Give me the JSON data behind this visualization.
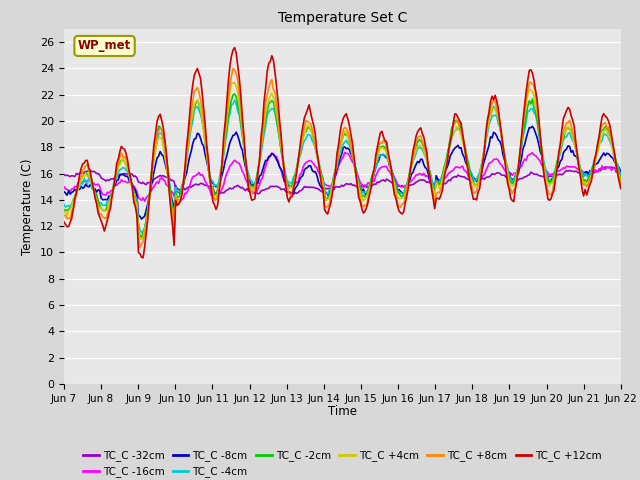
{
  "title": "Temperature Set C",
  "xlabel": "Time",
  "ylabel": "Temperature (C)",
  "ylim": [
    0,
    27
  ],
  "yticks": [
    0,
    2,
    4,
    6,
    8,
    10,
    12,
    14,
    16,
    18,
    20,
    22,
    24,
    26
  ],
  "x_labels": [
    "Jun 7",
    "Jun 8",
    "Jun 9",
    "Jun 10",
    "Jun 11",
    "Jun 12",
    "Jun 13",
    "Jun 14",
    "Jun 15",
    "Jun 16",
    "Jun 17",
    "Jun 18",
    "Jun 19",
    "Jun 20",
    "Jun 21",
    "Jun 22"
  ],
  "wp_met_box_color": "#ffffcc",
  "wp_met_border_color": "#999900",
  "wp_met_text_color": "#8B0000",
  "fig_bg_color": "#d8d8d8",
  "plot_bg_color": "#e8e8e8",
  "grid_color": "#ffffff",
  "series": [
    {
      "label": "TC_C -32cm",
      "color": "#9900cc",
      "lw": 1.2
    },
    {
      "label": "TC_C -16cm",
      "color": "#ff00ff",
      "lw": 1.2
    },
    {
      "label": "TC_C -8cm",
      "color": "#0000cc",
      "lw": 1.2
    },
    {
      "label": "TC_C -4cm",
      "color": "#00cccc",
      "lw": 1.2
    },
    {
      "label": "TC_C -2cm",
      "color": "#00cc00",
      "lw": 1.2
    },
    {
      "label": "TC_C +4cm",
      "color": "#cccc00",
      "lw": 1.2
    },
    {
      "label": "TC_C +8cm",
      "color": "#ff8800",
      "lw": 1.2
    },
    {
      "label": "TC_C +12cm",
      "color": "#cc0000",
      "lw": 1.2
    }
  ]
}
